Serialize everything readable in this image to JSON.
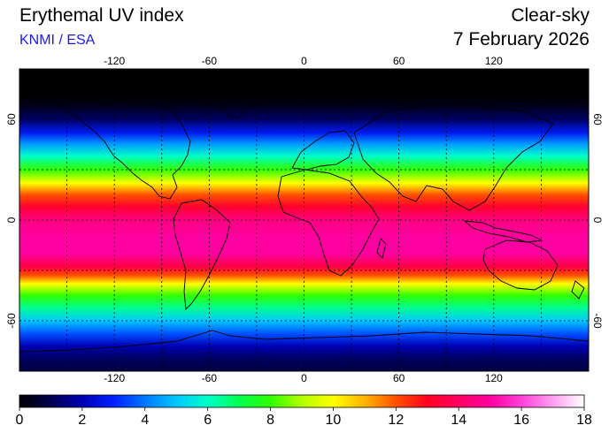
{
  "header": {
    "title": "Erythemal UV index",
    "credit": "KNMI / ESA",
    "condition": "Clear-sky",
    "date": "7 February 2026"
  },
  "map": {
    "projection": "equirectangular",
    "lon_range": [
      -180,
      180
    ],
    "lat_range": [
      -90,
      90
    ],
    "lon_ticks": [
      -120,
      -60,
      0,
      60,
      120
    ],
    "lat_ticks": [
      60,
      0,
      -60
    ],
    "lon_tick_labels": [
      "-120",
      "-60",
      "0",
      "60",
      "120"
    ],
    "lat_tick_labels": [
      "60",
      "0",
      "-60"
    ],
    "grid": true,
    "grid_spacing_deg": 30
  },
  "colorbar": {
    "min": 0,
    "max": 18,
    "tick_values": [
      0,
      2,
      4,
      6,
      8,
      10,
      12,
      14,
      16,
      18
    ],
    "tick_labels": [
      "0",
      "2",
      "4",
      "6",
      "8",
      "10",
      "12",
      "14",
      "16",
      "18"
    ],
    "stops": [
      {
        "value": 0,
        "color": "#000000"
      },
      {
        "value": 1,
        "color": "#000050"
      },
      {
        "value": 2,
        "color": "#0000b4"
      },
      {
        "value": 3,
        "color": "#0020ff"
      },
      {
        "value": 4,
        "color": "#0078ff"
      },
      {
        "value": 5,
        "color": "#00c8ff"
      },
      {
        "value": 6,
        "color": "#00ffc8"
      },
      {
        "value": 7,
        "color": "#00ff50"
      },
      {
        "value": 8,
        "color": "#30ff00"
      },
      {
        "value": 9,
        "color": "#b4ff00"
      },
      {
        "value": 10,
        "color": "#ffff00"
      },
      {
        "value": 11,
        "color": "#ffb400"
      },
      {
        "value": 12,
        "color": "#ff5000"
      },
      {
        "value": 13,
        "color": "#ff0020"
      },
      {
        "value": 14,
        "color": "#ff0064"
      },
      {
        "value": 15,
        "color": "#ff00a0"
      },
      {
        "value": 16,
        "color": "#ff40d8"
      },
      {
        "value": 17,
        "color": "#ffa0f0"
      },
      {
        "value": 18,
        "color": "#ffffff"
      }
    ]
  },
  "uv_by_latitude": [
    {
      "lat": 90,
      "uv": 0
    },
    {
      "lat": 75,
      "uv": 0
    },
    {
      "lat": 68,
      "uv": 0.3
    },
    {
      "lat": 60,
      "uv": 1.2
    },
    {
      "lat": 52,
      "uv": 2.8
    },
    {
      "lat": 45,
      "uv": 4.5
    },
    {
      "lat": 38,
      "uv": 6.0
    },
    {
      "lat": 30,
      "uv": 8.0
    },
    {
      "lat": 22,
      "uv": 10.0
    },
    {
      "lat": 15,
      "uv": 12.0
    },
    {
      "lat": 8,
      "uv": 13.2
    },
    {
      "lat": 0,
      "uv": 14.5
    },
    {
      "lat": -10,
      "uv": 15.0
    },
    {
      "lat": -20,
      "uv": 15.0
    },
    {
      "lat": -28,
      "uv": 13.5
    },
    {
      "lat": -33,
      "uv": 12.0
    },
    {
      "lat": -38,
      "uv": 10.0
    },
    {
      "lat": -45,
      "uv": 8.0
    },
    {
      "lat": -52,
      "uv": 6.5
    },
    {
      "lat": -60,
      "uv": 5.0
    },
    {
      "lat": -68,
      "uv": 3.5
    },
    {
      "lat": -75,
      "uv": 2.0
    },
    {
      "lat": -82,
      "uv": 1.2
    },
    {
      "lat": -90,
      "uv": 0.8
    }
  ]
}
